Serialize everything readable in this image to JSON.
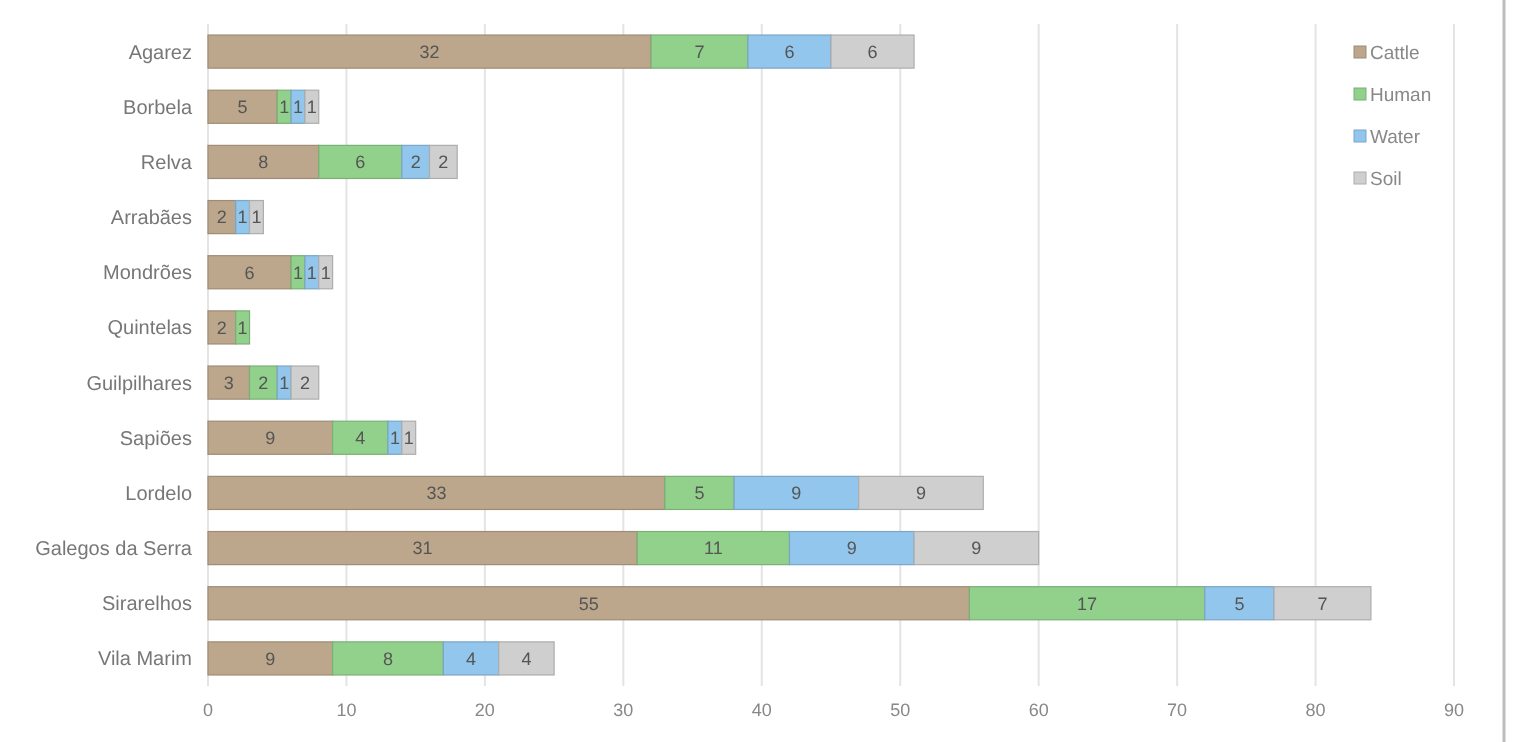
{
  "chart_data": {
    "type": "bar",
    "orientation": "horizontal",
    "stacked": true,
    "data_labels": true,
    "grid": "x",
    "legend": "top right",
    "categories": [
      "Agarez",
      "Borbela",
      "Relva",
      "Arrabães",
      "Mondrões",
      "Quintelas",
      "Guilpilhares",
      "Sapiões",
      "Lordelo",
      "Galegos da Serra",
      "Sirarelhos",
      "Vila Marim"
    ],
    "series": [
      {
        "name": "Cattle",
        "color": "#bca78c",
        "values": [
          32,
          5,
          8,
          2,
          6,
          2,
          3,
          9,
          33,
          31,
          55,
          9
        ]
      },
      {
        "name": "Human",
        "color": "#92d18c",
        "values": [
          7,
          1,
          6,
          null,
          1,
          1,
          2,
          4,
          5,
          11,
          17,
          8
        ]
      },
      {
        "name": "Water",
        "color": "#93c6ec",
        "values": [
          6,
          1,
          2,
          1,
          1,
          null,
          1,
          1,
          9,
          9,
          5,
          4
        ]
      },
      {
        "name": "Soil",
        "color": "#cfcfcf",
        "values": [
          6,
          1,
          2,
          1,
          1,
          null,
          2,
          1,
          9,
          9,
          7,
          4
        ]
      }
    ],
    "xlim": [
      0,
      90
    ],
    "xticks": [
      0,
      10,
      20,
      30,
      40,
      50,
      60,
      70,
      80,
      90
    ]
  }
}
